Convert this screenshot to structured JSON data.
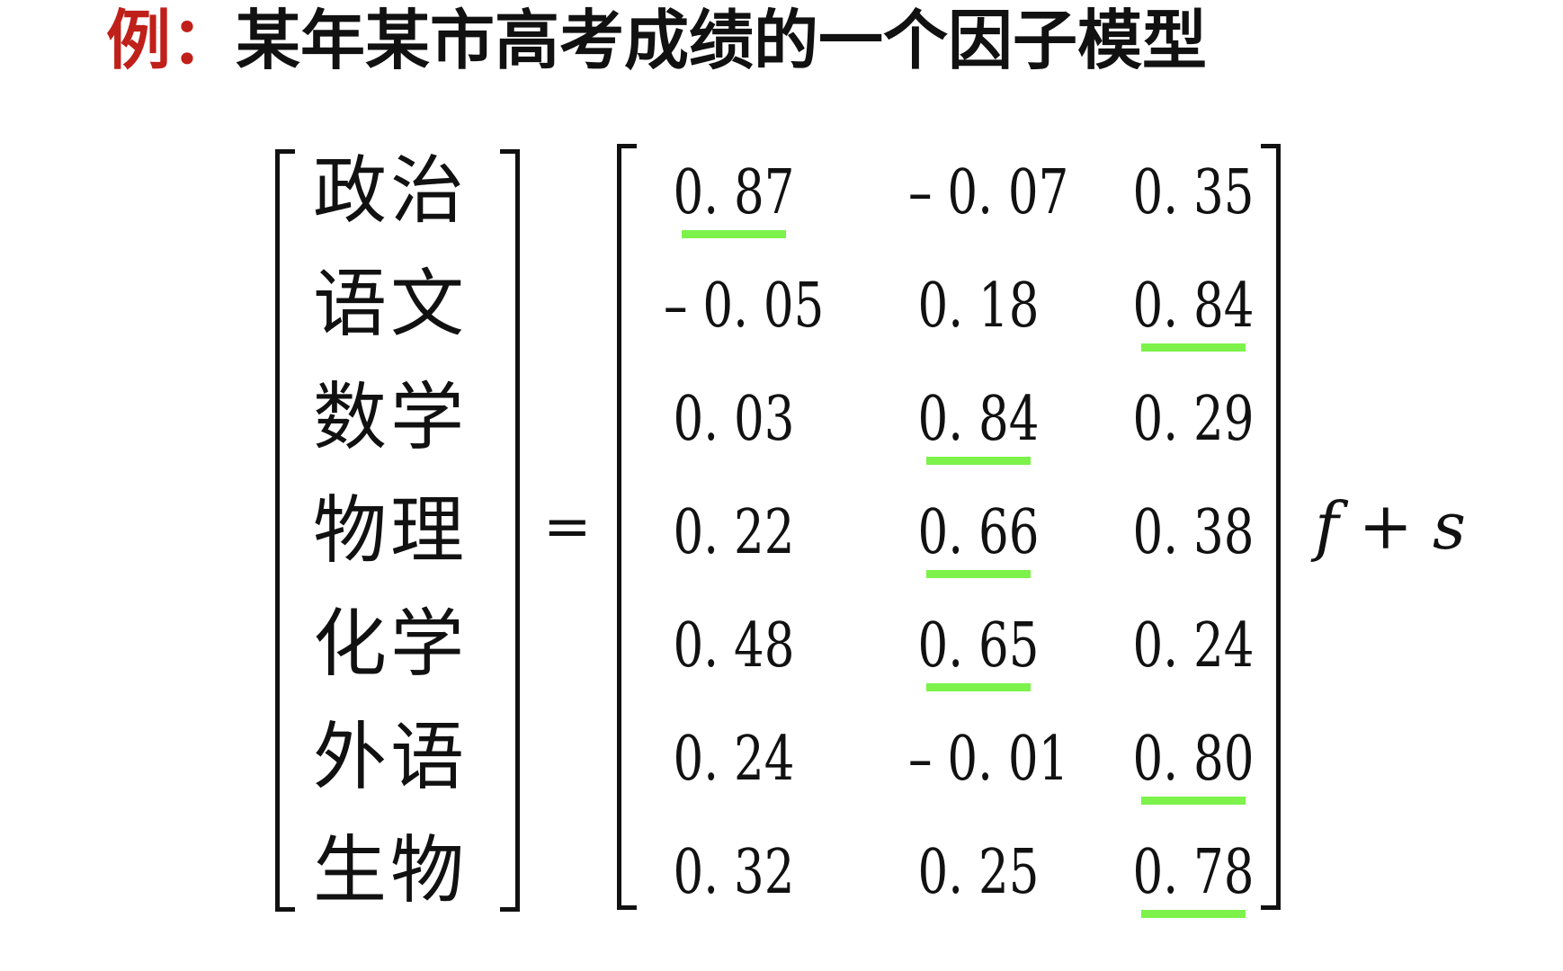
{
  "title": {
    "prefix": "例：",
    "text": "某年某市高考成绩的一个因子模型"
  },
  "equation": {
    "subjects": [
      "政治",
      "语文",
      "数学",
      "物理",
      "化学",
      "外语",
      "生物"
    ],
    "equals": "=",
    "loadings": [
      [
        "0. 87",
        "– 0. 07",
        "0. 35"
      ],
      [
        "– 0. 05",
        "0. 18",
        "0. 84"
      ],
      [
        "0. 03",
        "0. 84",
        "0. 29"
      ],
      [
        "0. 22",
        "0. 66",
        "0. 38"
      ],
      [
        "0. 48",
        "0. 65",
        "0. 24"
      ],
      [
        "0. 24",
        "– 0. 01",
        "0. 80"
      ],
      [
        "0. 32",
        "0. 25",
        "0. 78"
      ]
    ],
    "highlighted": [
      [
        0,
        0
      ],
      [
        1,
        2
      ],
      [
        2,
        1
      ],
      [
        3,
        1
      ],
      [
        4,
        1
      ],
      [
        5,
        2
      ],
      [
        6,
        2
      ]
    ],
    "factor_var": "f",
    "plus": "+",
    "specific_var": "s"
  },
  "colors": {
    "prefix": "#c0201a",
    "highlight": "#7cf24a",
    "text": "#111111"
  }
}
